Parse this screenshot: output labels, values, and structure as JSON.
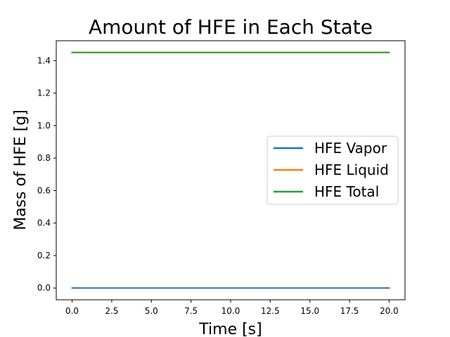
{
  "chart_data": {
    "type": "line",
    "title": "Amount of HFE in Each State",
    "xlabel": "Time [s]",
    "ylabel": "Mass of HFE [g]",
    "xlim": [
      -1.0,
      21.0
    ],
    "ylim": [
      -0.0725,
      1.5225
    ],
    "xticks": [
      0.0,
      2.5,
      5.0,
      7.5,
      10.0,
      12.5,
      15.0,
      17.5,
      20.0
    ],
    "xtick_labels": [
      "0.0",
      "2.5",
      "5.0",
      "7.5",
      "10.0",
      "12.5",
      "15.0",
      "17.5",
      "20.0"
    ],
    "yticks": [
      0.0,
      0.2,
      0.4,
      0.6,
      0.8,
      1.0,
      1.2,
      1.4
    ],
    "ytick_labels": [
      "0.0",
      "0.2",
      "0.4",
      "0.6",
      "0.8",
      "1.0",
      "1.2",
      "1.4"
    ],
    "grid": false,
    "legend_position": "center-right",
    "series": [
      {
        "name": "HFE Vapor",
        "color": "#1f77b4",
        "x": [
          0,
          20
        ],
        "y": [
          0.0,
          0.0
        ]
      },
      {
        "name": "HFE Liquid",
        "color": "#ff7f0e",
        "x": [
          0,
          20
        ],
        "y": [
          1.45,
          1.45
        ]
      },
      {
        "name": "HFE Total",
        "color": "#2ca02c",
        "x": [
          0,
          20
        ],
        "y": [
          1.45,
          1.45
        ]
      }
    ]
  }
}
